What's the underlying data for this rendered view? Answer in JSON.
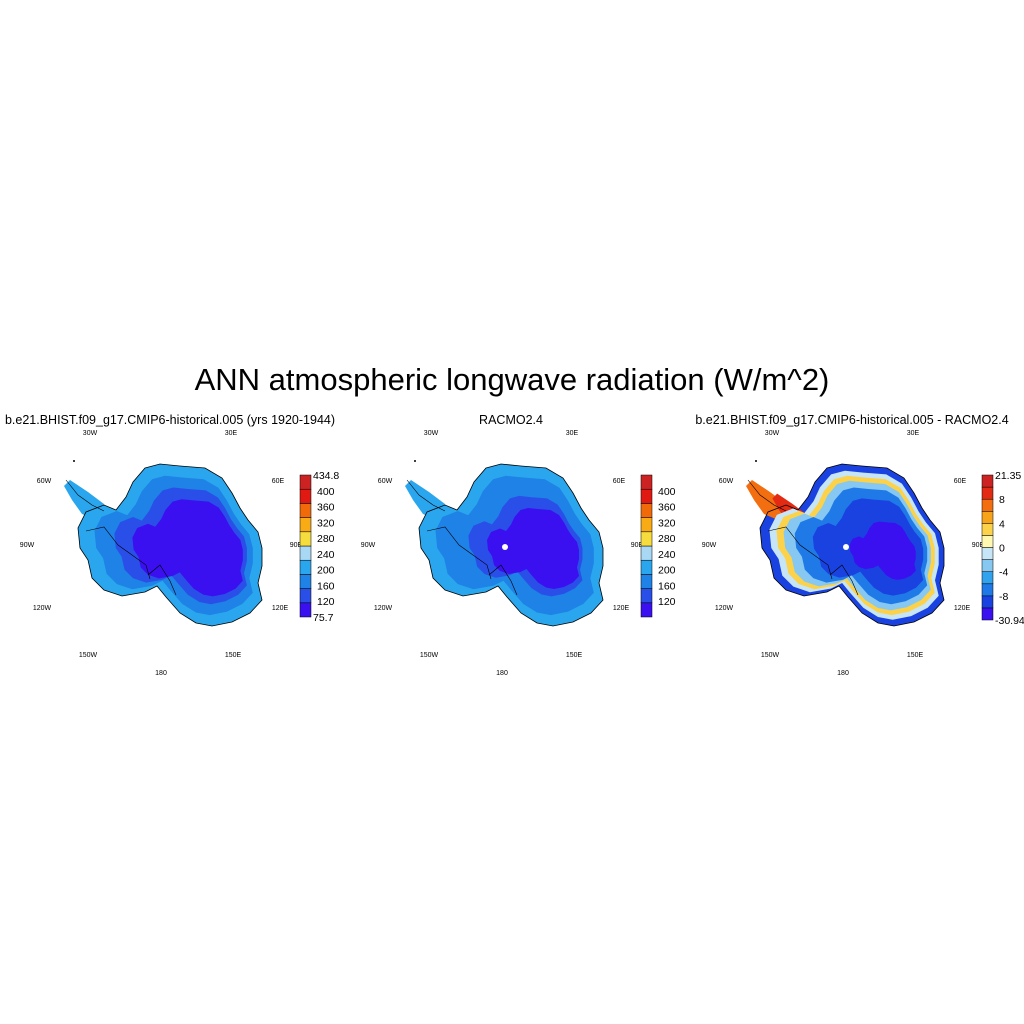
{
  "page_title": "ANN atmospheric longwave radiation (W/m^2)",
  "colors": {
    "seq_levels": [
      "#3a10f0",
      "#2a4fe8",
      "#1e82e6",
      "#2aa6ee",
      "#a8d8f4",
      "#f6dc3c",
      "#f8ab14",
      "#f06a0a",
      "#e01a12",
      "#cc2222"
    ],
    "diff_levels": [
      "#3a10f0",
      "#1a42e0",
      "#1f7ae8",
      "#30a2ee",
      "#86c8f2",
      "#c6e6f8",
      "#fff8b0",
      "#fbd24a",
      "#f8a41a",
      "#f26e10",
      "#e32a12",
      "#cc2222"
    ],
    "coastline": "#000000",
    "background": "#ffffff"
  },
  "chart_data": [
    {
      "type": "map",
      "title": "b.e21.BHIST.f09_g17.CMIP6-historical.005 (yrs 1920-1944)",
      "projection": "south polar stereographic",
      "longitude_labels": [
        "30W",
        "30E",
        "60W",
        "60E",
        "90W",
        "90E",
        "120W",
        "120E",
        "150W",
        "150E",
        "180"
      ],
      "colorbar": {
        "min_label": "75.7",
        "max_label": "434.8",
        "tick_labels": [
          "120",
          "160",
          "200",
          "240",
          "280",
          "320",
          "360",
          "400"
        ]
      },
      "field_summary": {
        "interior_plateau": "75.7-120",
        "ice_sheet_slopes": "120-160",
        "coastal_margin": "160-200",
        "peninsula_ice_shelves": "200-240"
      }
    },
    {
      "type": "map",
      "title": "RACMO2.4",
      "projection": "south polar stereographic",
      "longitude_labels": [
        "30W",
        "30E",
        "60W",
        "60E",
        "90W",
        "90E",
        "120W",
        "120E",
        "150W",
        "150E",
        "180"
      ],
      "colorbar": {
        "min_label": "",
        "max_label": "",
        "tick_labels": [
          "120",
          "160",
          "200",
          "240",
          "280",
          "320",
          "360",
          "400"
        ]
      },
      "field_summary": {
        "interior_plateau": "<120",
        "ice_sheet_slopes": "120-160",
        "coastal_margin": "160-200",
        "peninsula_ice_shelves": "200-240"
      }
    },
    {
      "type": "map",
      "title": "b.e21.BHIST.f09_g17.CMIP6-historical.005 - RACMO2.4",
      "projection": "south polar stereographic",
      "longitude_labels": [
        "30W",
        "30E",
        "60W",
        "60E",
        "90W",
        "90E",
        "120W",
        "120E",
        "150W",
        "150E",
        "180"
      ],
      "colorbar": {
        "min_label": "-30.94",
        "max_label": "21.35",
        "tick_labels": [
          "-8",
          "-4",
          "0",
          "4",
          "8"
        ]
      },
      "field_summary": {
        "interior_plateau": "-30.94 to -8",
        "escarpment_band": "0 to 8",
        "peninsula": "8 to 21.35"
      }
    }
  ]
}
